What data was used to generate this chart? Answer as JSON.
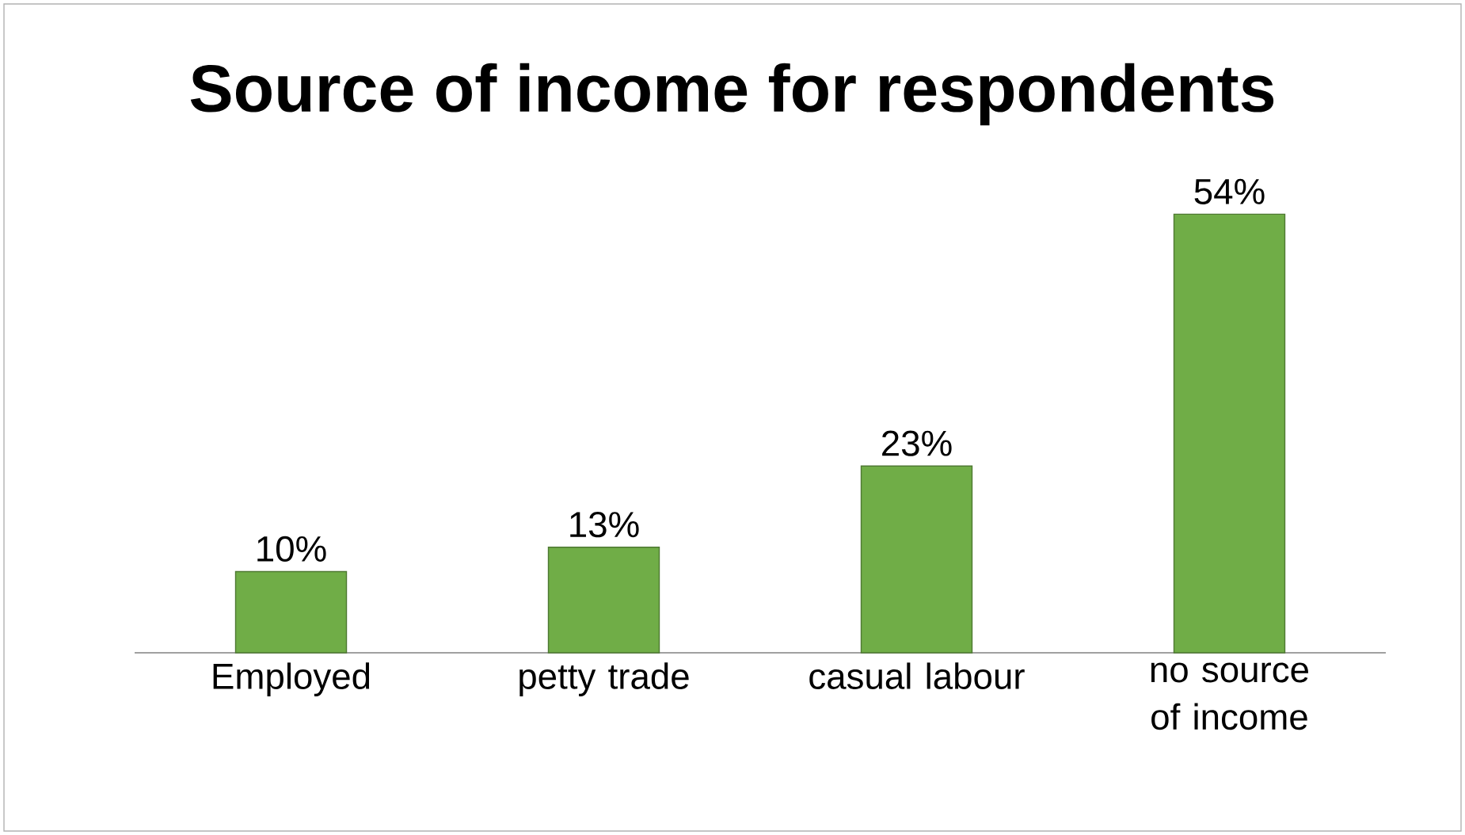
{
  "chart_data": {
    "type": "bar",
    "title": "Source of income for respondents",
    "categories": [
      "Employed",
      "petty trade",
      "casual labour",
      "no source of income"
    ],
    "values": [
      10,
      13,
      23,
      54
    ],
    "value_labels": [
      "10%",
      "13%",
      "23%",
      "54%"
    ],
    "color": "#70ad47"
  }
}
